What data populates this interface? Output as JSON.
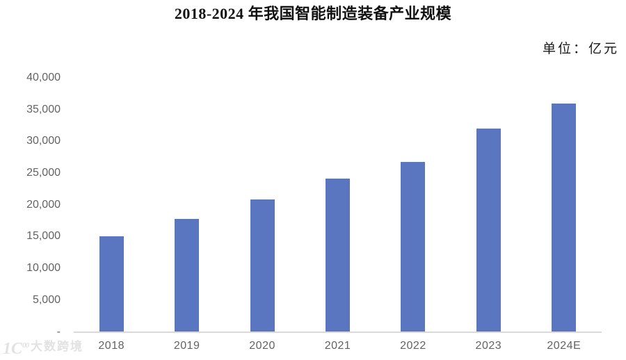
{
  "header": {
    "title": "2018-2024 年我国智能制造装备产业规模",
    "unit_label": "单位：亿元"
  },
  "chart_data": {
    "type": "bar",
    "title": "2018-2024 年我国智能制造装备产业规模",
    "unit": "亿元",
    "categories": [
      "2018",
      "2019",
      "2020",
      "2021",
      "2022",
      "2023",
      "2024E"
    ],
    "values": [
      15100,
      17800,
      20900,
      24100,
      26800,
      32000,
      36000
    ],
    "ylim": [
      0,
      40000
    ],
    "ytick_interval": 5000,
    "ytick_labels": [
      "40,000",
      "35,000",
      "30,000",
      "25,000",
      "20,000",
      "15,000",
      "10,000",
      "5,000",
      "-"
    ],
    "xlabel": "",
    "ylabel": "",
    "grid": false,
    "legend": "none",
    "bar_color": "#5b76c0",
    "axis_line_color": "#d9d9d9",
    "tick_label_color": "#636363"
  },
  "watermark": {
    "logo_text": "1C",
    "logo_sup": "00",
    "text": "大数跨境"
  }
}
